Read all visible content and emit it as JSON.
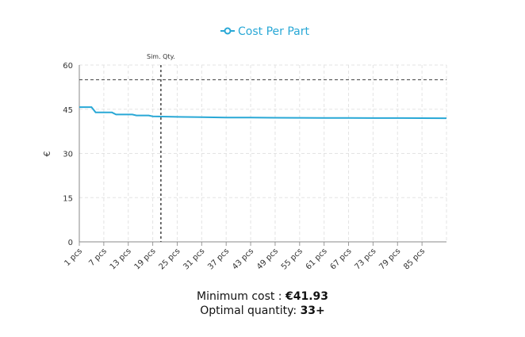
{
  "chart_data": {
    "type": "line",
    "ylabel": "€",
    "xlabel": "",
    "ylim": [
      0,
      60
    ],
    "yticks": [
      0,
      15,
      30,
      45,
      60
    ],
    "grid": true,
    "legend_position": "top-center",
    "categories": [
      "1 pcs",
      "7 pcs",
      "13 pcs",
      "19 pcs",
      "25 pcs",
      "31 pcs",
      "37 pcs",
      "43 pcs",
      "49 pcs",
      "55 pcs",
      "61 pcs",
      "67 pcs",
      "73 pcs",
      "79 pcs",
      "85 pcs"
    ],
    "x_min": 1,
    "x_max": 91,
    "series": [
      {
        "name": "Cost Per Part",
        "color": "#29a8d6",
        "points": [
          [
            1,
            45.7
          ],
          [
            4,
            45.7
          ],
          [
            5,
            43.9
          ],
          [
            9,
            43.9
          ],
          [
            10,
            43.2
          ],
          [
            14,
            43.2
          ],
          [
            15,
            42.9
          ],
          [
            18,
            42.9
          ],
          [
            19,
            42.6
          ],
          [
            25,
            42.4
          ],
          [
            31,
            42.3
          ],
          [
            37,
            42.2
          ],
          [
            43,
            42.15
          ],
          [
            49,
            42.1
          ],
          [
            55,
            42.08
          ],
          [
            61,
            42.05
          ],
          [
            67,
            42.03
          ],
          [
            73,
            42.0
          ],
          [
            79,
            42.0
          ],
          [
            85,
            41.97
          ],
          [
            91,
            41.95
          ]
        ]
      }
    ],
    "reference_lines": [
      {
        "type": "horizontal",
        "y": 55,
        "style": "dashed",
        "color": "#555555"
      },
      {
        "type": "vertical",
        "x": 21,
        "label": "Sim. Qty.",
        "style": "dashed",
        "color": "#333333"
      }
    ]
  },
  "summary": {
    "min_cost_label": "Minimum cost : ",
    "min_cost_value": "€41.93",
    "optimal_qty_label": "Optimal quantity: ",
    "optimal_qty_value": "33+"
  }
}
